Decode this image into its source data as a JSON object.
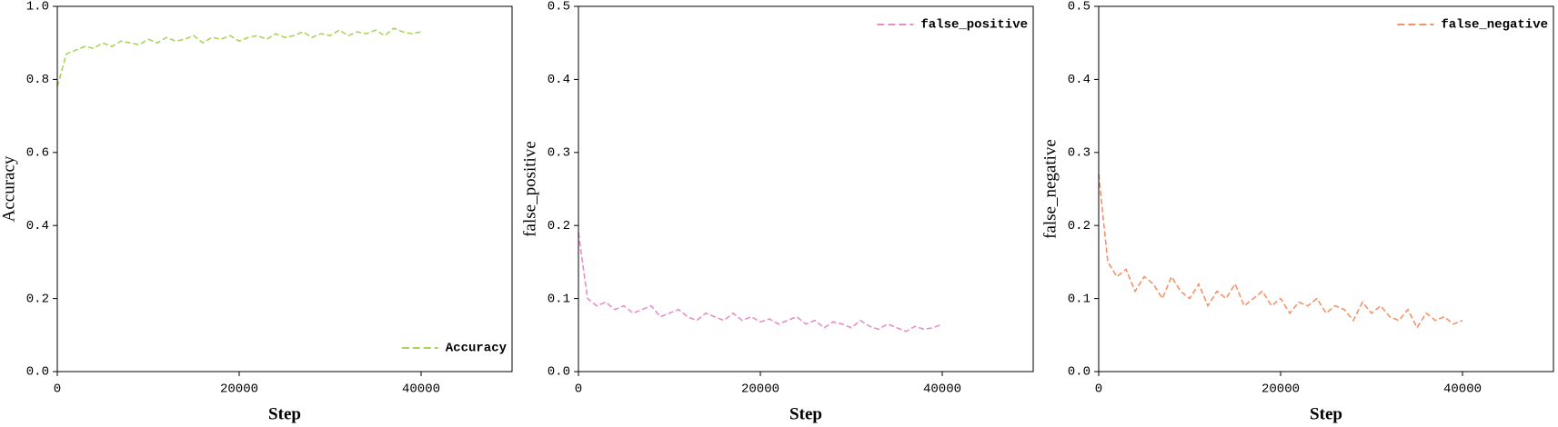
{
  "chart_data": [
    {
      "type": "line",
      "xlabel": "Step",
      "ylabel": "Accuracy",
      "x": [
        0,
        1000,
        2000,
        3000,
        4000,
        5000,
        6000,
        7000,
        8000,
        9000,
        10000,
        11000,
        12000,
        13000,
        14000,
        15000,
        16000,
        17000,
        18000,
        19000,
        20000,
        21000,
        22000,
        23000,
        24000,
        25000,
        26000,
        27000,
        28000,
        29000,
        30000,
        31000,
        32000,
        33000,
        34000,
        35000,
        36000,
        37000,
        38000,
        39000,
        40000
      ],
      "series": [
        {
          "name": "Accuracy",
          "color": "#a6d75b",
          "values": [
            0.78,
            0.87,
            0.88,
            0.89,
            0.885,
            0.9,
            0.89,
            0.905,
            0.9,
            0.895,
            0.91,
            0.9,
            0.915,
            0.905,
            0.91,
            0.92,
            0.9,
            0.915,
            0.91,
            0.92,
            0.905,
            0.915,
            0.92,
            0.91,
            0.925,
            0.915,
            0.92,
            0.93,
            0.915,
            0.925,
            0.92,
            0.935,
            0.92,
            0.93,
            0.925,
            0.935,
            0.92,
            0.94,
            0.93,
            0.925,
            0.93
          ]
        }
      ],
      "xlim": [
        0,
        50000
      ],
      "xticks": [
        0,
        20000,
        40000
      ],
      "ylim": [
        0,
        1
      ],
      "yticks": [
        {
          "value": 0,
          "label": "0.0"
        },
        0.2,
        0.4,
        0.6,
        0.8,
        {
          "value": 1,
          "label": "1.0"
        }
      ],
      "legend": "lower right"
    },
    {
      "type": "line",
      "xlabel": "Step",
      "ylabel": "false_positive",
      "x": [
        0,
        1000,
        2000,
        3000,
        4000,
        5000,
        6000,
        7000,
        8000,
        9000,
        10000,
        11000,
        12000,
        13000,
        14000,
        15000,
        16000,
        17000,
        18000,
        19000,
        20000,
        21000,
        22000,
        23000,
        24000,
        25000,
        26000,
        27000,
        28000,
        29000,
        30000,
        31000,
        32000,
        33000,
        34000,
        35000,
        36000,
        37000,
        38000,
        39000,
        40000
      ],
      "series": [
        {
          "name": "false_positive",
          "color": "#e58fc9",
          "values": [
            0.19,
            0.1,
            0.09,
            0.095,
            0.085,
            0.09,
            0.08,
            0.085,
            0.09,
            0.075,
            0.08,
            0.085,
            0.075,
            0.07,
            0.08,
            0.075,
            0.07,
            0.08,
            0.07,
            0.075,
            0.068,
            0.072,
            0.065,
            0.07,
            0.075,
            0.065,
            0.07,
            0.06,
            0.068,
            0.065,
            0.06,
            0.07,
            0.062,
            0.058,
            0.065,
            0.06,
            0.055,
            0.062,
            0.058,
            0.06,
            0.065
          ]
        }
      ],
      "xlim": [
        0,
        50000
      ],
      "xticks": [
        0,
        20000,
        40000
      ],
      "ylim": [
        0,
        0.5
      ],
      "yticks": [
        {
          "value": 0,
          "label": "0.0"
        },
        0.1,
        0.2,
        0.3,
        0.4,
        0.5
      ],
      "legend": "upper right"
    },
    {
      "type": "line",
      "xlabel": "Step",
      "ylabel": "false_negative",
      "x": [
        0,
        1000,
        2000,
        3000,
        4000,
        5000,
        6000,
        7000,
        8000,
        9000,
        10000,
        11000,
        12000,
        13000,
        14000,
        15000,
        16000,
        17000,
        18000,
        19000,
        20000,
        21000,
        22000,
        23000,
        24000,
        25000,
        26000,
        27000,
        28000,
        29000,
        30000,
        31000,
        32000,
        33000,
        34000,
        35000,
        36000,
        37000,
        38000,
        39000,
        40000
      ],
      "series": [
        {
          "name": "false_negative",
          "color": "#f4926a",
          "values": [
            0.27,
            0.15,
            0.13,
            0.14,
            0.11,
            0.13,
            0.12,
            0.1,
            0.13,
            0.11,
            0.1,
            0.12,
            0.09,
            0.11,
            0.1,
            0.12,
            0.09,
            0.1,
            0.11,
            0.09,
            0.1,
            0.08,
            0.095,
            0.09,
            0.1,
            0.08,
            0.09,
            0.085,
            0.07,
            0.095,
            0.08,
            0.09,
            0.075,
            0.07,
            0.085,
            0.06,
            0.08,
            0.07,
            0.075,
            0.065,
            0.07
          ]
        }
      ],
      "xlim": [
        0,
        50000
      ],
      "xticks": [
        0,
        20000,
        40000
      ],
      "ylim": [
        0,
        0.5
      ],
      "yticks": [
        {
          "value": 0,
          "label": "0.0"
        },
        0.1,
        0.2,
        0.3,
        0.4,
        0.5
      ],
      "legend": "upper right"
    }
  ]
}
